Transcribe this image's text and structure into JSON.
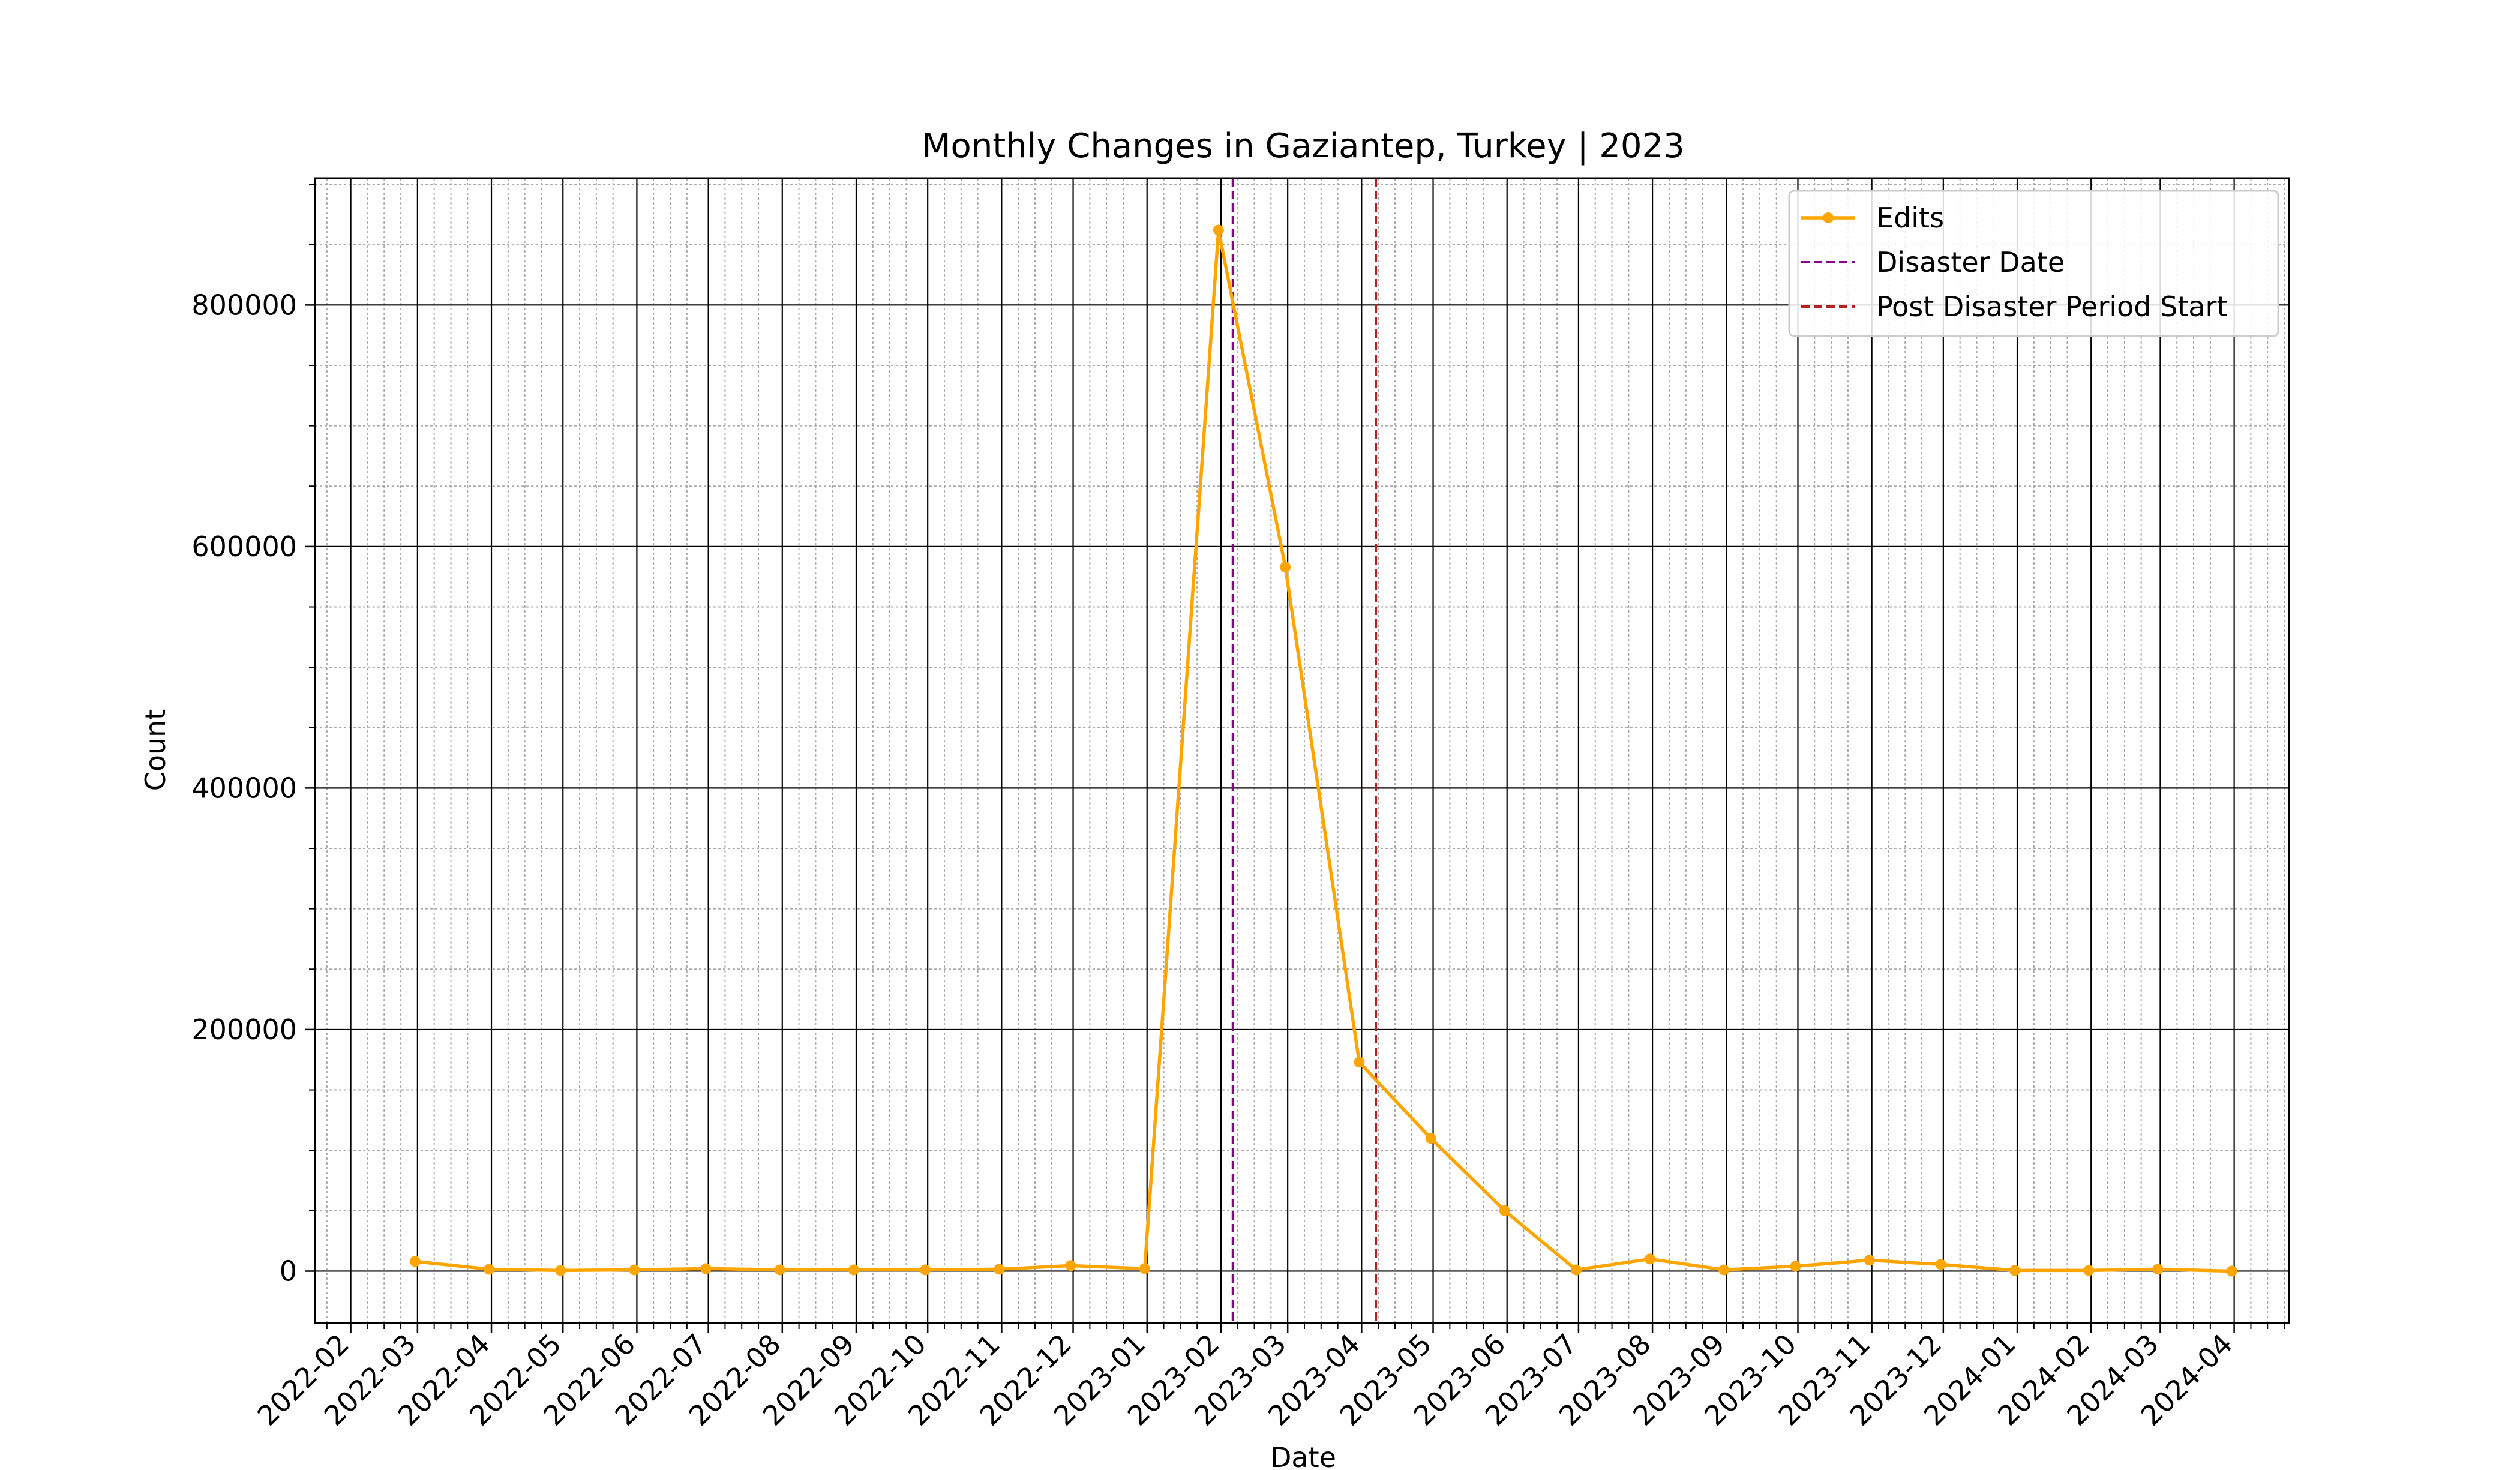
{
  "chart_data": {
    "type": "line",
    "title": "Monthly Changes in Gaziantep, Turkey | 2023",
    "xlabel": "Date",
    "ylabel": "Count",
    "x_ticks": [
      "2022-02",
      "2022-03",
      "2022-04",
      "2022-05",
      "2022-06",
      "2022-07",
      "2022-08",
      "2022-09",
      "2022-10",
      "2022-11",
      "2022-12",
      "2023-01",
      "2023-02",
      "2023-03",
      "2023-04",
      "2023-05",
      "2023-06",
      "2023-07",
      "2023-08",
      "2023-09",
      "2023-10",
      "2023-11",
      "2023-12",
      "2024-01",
      "2024-02",
      "2024-03",
      "2024-04"
    ],
    "y_ticks": [
      0,
      200000,
      400000,
      600000,
      800000
    ],
    "xlim": [
      "2022-01-17",
      "2024-04-24"
    ],
    "ylim": [
      -43000,
      905000
    ],
    "grid": true,
    "legend_position": "upper-right",
    "series": [
      {
        "name": "Edits",
        "color": "#FFA500",
        "marker": "circle",
        "x": [
          "2022-02-28",
          "2022-03-31",
          "2022-04-30",
          "2022-05-31",
          "2022-06-30",
          "2022-07-31",
          "2022-08-31",
          "2022-09-30",
          "2022-10-31",
          "2022-11-30",
          "2022-12-31",
          "2023-01-31",
          "2023-02-28",
          "2023-03-31",
          "2023-04-30",
          "2023-05-31",
          "2023-06-30",
          "2023-07-31",
          "2023-08-31",
          "2023-09-30",
          "2023-10-31",
          "2023-11-30",
          "2023-12-31",
          "2024-01-31",
          "2024-02-29",
          "2024-03-31"
        ],
        "values": [
          8000,
          1500,
          500,
          1000,
          2000,
          1000,
          1000,
          1000,
          1500,
          4500,
          2000,
          862000,
          583000,
          173000,
          110000,
          50000,
          1000,
          10000,
          1000,
          4000,
          9000,
          5500,
          500,
          500,
          1500,
          0
        ]
      }
    ],
    "vlines": [
      {
        "name": "Disaster Date",
        "x": "2023-02-06",
        "color": "#8B008B",
        "style": "dashed"
      },
      {
        "name": "Post Disaster Period Start",
        "x": "2023-04-07",
        "color": "#B22222",
        "style": "dashed"
      }
    ]
  }
}
